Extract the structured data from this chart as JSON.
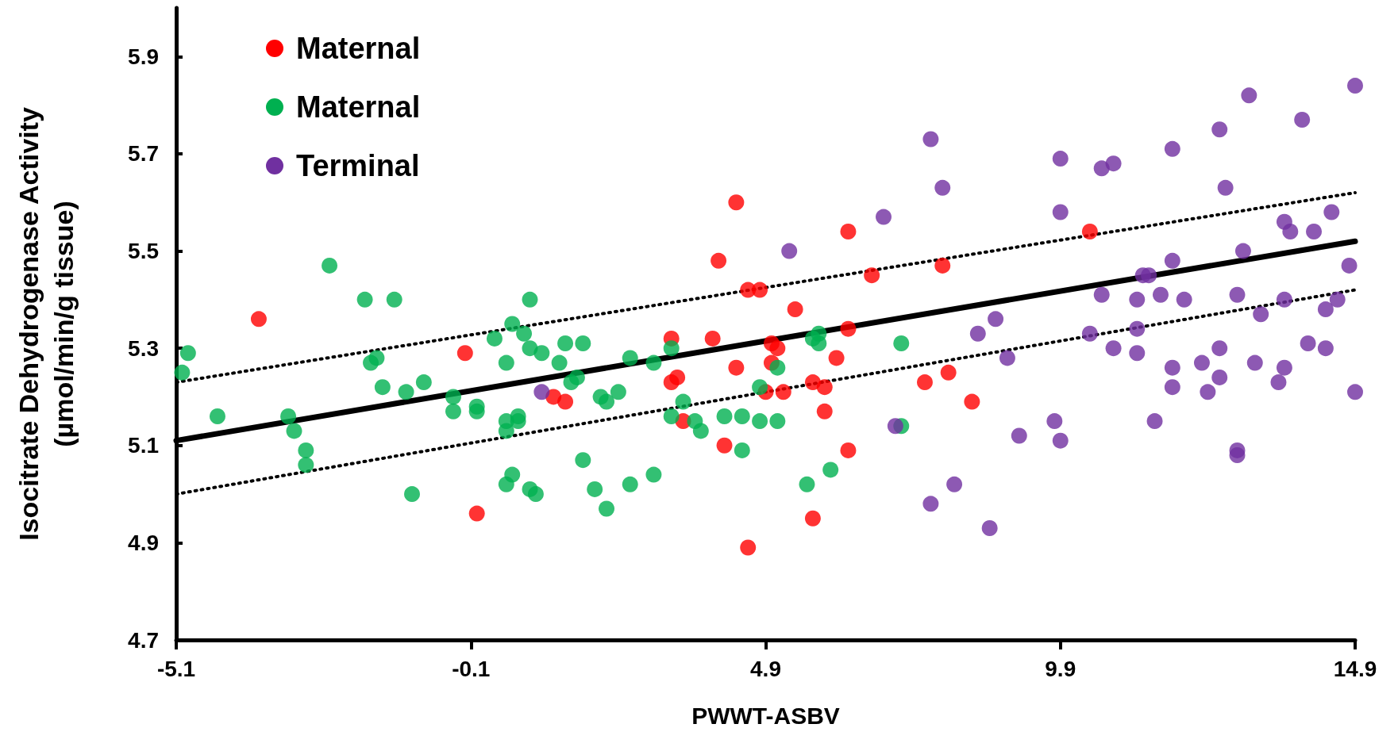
{
  "chart_data": {
    "type": "scatter",
    "xlabel": "PWWT-ASBV",
    "ylabel": "Isocitrate Dehydrogenase Activity\n(µmol/min/g tissue)",
    "xlim": [
      -5.1,
      14.9
    ],
    "xticks": [
      -5.1,
      -0.1,
      4.9,
      9.9,
      14.9
    ],
    "ylim": [
      4.7,
      6.0
    ],
    "yticks": [
      4.7,
      4.9,
      5.1,
      5.3,
      5.5,
      5.7,
      5.9
    ],
    "grid": false,
    "legend": "top left",
    "marker": "circle",
    "series": [
      {
        "name": "Maternal",
        "color": "#ff0000",
        "x": [
          -3.7,
          -0.2,
          0.0,
          1.3,
          1.5,
          3.3,
          3.3,
          3.4,
          3.5,
          4.0,
          4.1,
          4.2,
          4.4,
          4.4,
          4.6,
          4.6,
          4.8,
          4.9,
          5.0,
          5.0,
          5.1,
          5.2,
          5.4,
          5.7,
          5.7,
          5.9,
          5.9,
          6.1,
          6.3,
          6.3,
          6.3,
          6.7,
          7.6,
          7.9,
          8.0,
          8.4,
          10.4
        ],
        "values": [
          5.36,
          5.29,
          4.96,
          5.2,
          5.19,
          5.32,
          5.23,
          5.24,
          5.15,
          5.32,
          5.48,
          5.1,
          5.26,
          5.6,
          5.42,
          4.89,
          5.42,
          5.21,
          5.27,
          5.31,
          5.3,
          5.21,
          5.38,
          4.95,
          5.23,
          5.17,
          5.22,
          5.28,
          5.54,
          5.34,
          5.09,
          5.45,
          5.23,
          5.47,
          5.25,
          5.19,
          5.54
        ]
      },
      {
        "name": "Maternal",
        "color": "#00b050",
        "x": [
          -5.0,
          -4.9,
          -4.4,
          -3.2,
          -3.1,
          -2.9,
          -2.9,
          -2.5,
          -1.9,
          -1.8,
          -1.7,
          -1.6,
          -1.4,
          -1.2,
          -1.1,
          -0.9,
          -0.4,
          -0.4,
          0.0,
          0.0,
          0.3,
          0.5,
          0.5,
          0.5,
          0.5,
          0.6,
          0.6,
          0.7,
          0.7,
          0.8,
          0.9,
          0.9,
          0.9,
          1.0,
          1.1,
          1.4,
          1.5,
          1.6,
          1.7,
          1.8,
          1.8,
          2.0,
          2.1,
          2.2,
          2.2,
          2.4,
          2.6,
          2.6,
          3.0,
          3.0,
          3.3,
          3.3,
          3.5,
          3.7,
          3.8,
          4.2,
          4.5,
          4.5,
          4.8,
          4.8,
          5.1,
          5.1,
          5.6,
          5.7,
          5.8,
          5.8,
          6.0,
          7.2,
          7.2
        ],
        "values": [
          5.25,
          5.29,
          5.16,
          5.16,
          5.13,
          5.09,
          5.06,
          5.47,
          5.4,
          5.27,
          5.28,
          5.22,
          5.4,
          5.21,
          5.0,
          5.23,
          5.2,
          5.17,
          5.17,
          5.18,
          5.32,
          5.02,
          5.13,
          5.15,
          5.27,
          5.35,
          5.04,
          5.16,
          5.15,
          5.33,
          5.01,
          5.4,
          5.3,
          5.0,
          5.29,
          5.27,
          5.31,
          5.23,
          5.24,
          5.31,
          5.07,
          5.01,
          5.2,
          5.19,
          4.97,
          5.21,
          5.02,
          5.28,
          5.04,
          5.27,
          5.3,
          5.16,
          5.19,
          5.15,
          5.13,
          5.16,
          5.09,
          5.16,
          5.22,
          5.15,
          5.26,
          5.15,
          5.02,
          5.32,
          5.33,
          5.31,
          5.05,
          5.14,
          5.31
        ]
      },
      {
        "name": "Terminal",
        "color": "#7030a0",
        "x": [
          1.1,
          5.3,
          6.9,
          7.1,
          7.7,
          7.7,
          7.9,
          8.1,
          8.5,
          8.7,
          8.8,
          9.0,
          9.2,
          9.8,
          9.9,
          9.9,
          9.9,
          10.4,
          10.6,
          10.6,
          10.8,
          10.8,
          11.2,
          11.2,
          11.2,
          11.3,
          11.4,
          11.5,
          11.6,
          11.8,
          11.8,
          11.8,
          11.8,
          12.0,
          12.3,
          12.4,
          12.6,
          12.6,
          12.6,
          12.7,
          12.9,
          12.9,
          12.9,
          13.0,
          13.1,
          13.2,
          13.3,
          13.6,
          13.7,
          13.7,
          13.7,
          13.8,
          14.0,
          14.1,
          14.2,
          14.4,
          14.5,
          14.6,
          14.9,
          14.8,
          14.9,
          14.4
        ],
        "values": [
          5.21,
          5.5,
          5.57,
          5.14,
          5.73,
          4.98,
          5.63,
          5.02,
          5.33,
          4.93,
          5.36,
          5.28,
          5.12,
          5.15,
          5.69,
          5.58,
          5.11,
          5.33,
          5.41,
          5.67,
          5.68,
          5.3,
          5.4,
          5.34,
          5.29,
          5.45,
          5.45,
          5.15,
          5.41,
          5.71,
          5.26,
          5.22,
          5.48,
          5.4,
          5.27,
          5.21,
          5.3,
          5.24,
          5.75,
          5.63,
          5.41,
          5.09,
          5.08,
          5.5,
          5.82,
          5.27,
          5.37,
          5.23,
          5.4,
          5.26,
          5.56,
          5.54,
          5.77,
          5.31,
          5.54,
          5.38,
          5.58,
          5.4,
          5.84,
          5.47,
          5.21,
          5.3
        ]
      },
      {
        "type": "line",
        "color": "#000000",
        "line_style": "solid",
        "marker": "none",
        "x": [
          -5.1,
          14.9
        ],
        "values": [
          5.11,
          5.52
        ]
      },
      {
        "type": "line",
        "color": "#000000",
        "line_style": "dotted",
        "marker": "none",
        "x": [
          -5.1,
          14.9
        ],
        "values": [
          5.23,
          5.62
        ]
      },
      {
        "type": "line",
        "color": "#000000",
        "line_style": "dotted",
        "marker": "none",
        "x": [
          -5.1,
          14.9
        ],
        "values": [
          5.0,
          5.42
        ]
      }
    ]
  }
}
